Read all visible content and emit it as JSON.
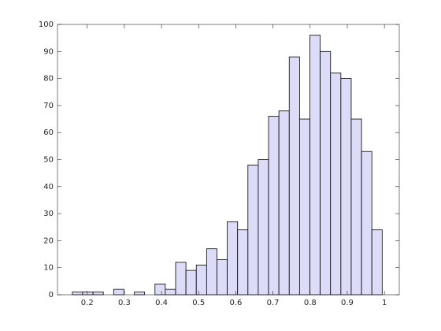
{
  "chart_data": {
    "type": "histogram",
    "bins": [
      0.16,
      0.1878,
      0.2156,
      0.2434,
      0.2712,
      0.299,
      0.3268,
      0.3546,
      0.3824,
      0.4102,
      0.438,
      0.4658,
      0.4936,
      0.5214,
      0.5492,
      0.577,
      0.6048,
      0.6326,
      0.6604,
      0.6882,
      0.716,
      0.7438,
      0.7716,
      0.7994,
      0.8272,
      0.855,
      0.8828,
      0.9106,
      0.9384,
      0.9662,
      0.994
    ],
    "values": [
      1,
      1,
      1,
      0,
      2,
      0,
      1,
      0,
      4,
      2,
      12,
      9,
      11,
      17,
      13,
      27,
      24,
      48,
      50,
      66,
      68,
      88,
      65,
      96,
      90,
      82,
      80,
      65,
      53,
      24
    ],
    "color": "#dcdcf8",
    "xlim": [
      0.12,
      1.04
    ],
    "xticks": [
      0.2,
      0.3,
      0.4,
      0.5,
      0.6,
      0.7,
      0.8,
      0.9,
      1
    ],
    "ylim": [
      0,
      100
    ],
    "yticks": [
      0,
      10,
      20,
      30,
      40,
      50,
      60,
      70,
      80,
      90,
      100
    ]
  }
}
